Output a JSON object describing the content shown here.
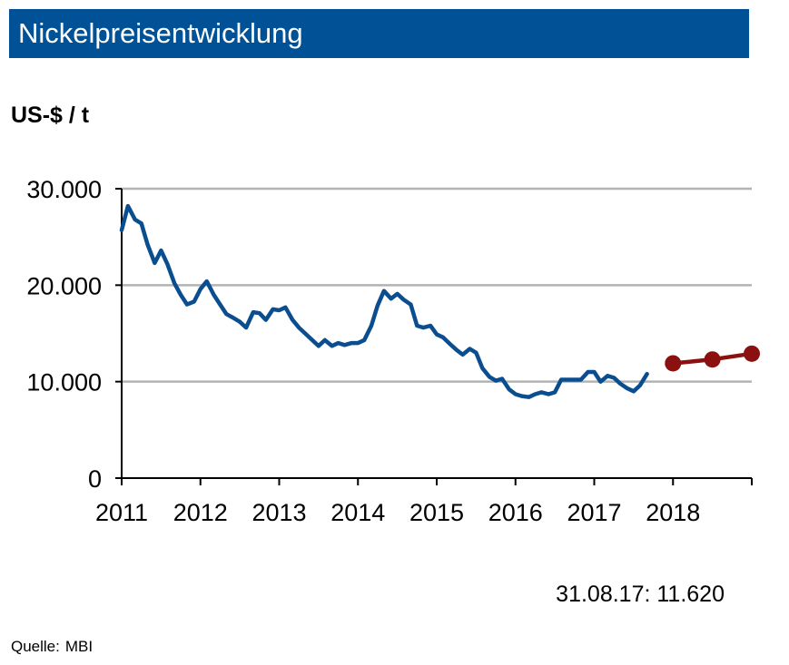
{
  "title": "Nickelpreisentwicklung",
  "unit_label": "US-$ / t",
  "note": "31.08.17: 11.620",
  "source": {
    "label": "Quelle:",
    "value": "MBI"
  },
  "colors": {
    "title_bg": "#005196",
    "history": "#0B4E8F",
    "forecast": "#8B1010",
    "grid": "#b3b3b3"
  },
  "chart_data": {
    "type": "line",
    "title": "Nickelpreisentwicklung",
    "ylabel": "US-$ / t",
    "xlabel": "",
    "ylim": [
      0,
      30000
    ],
    "xlim": [
      2011,
      2019
    ],
    "yticks": [
      0,
      10000,
      20000,
      30000
    ],
    "ytick_labels": [
      "0",
      "10.000",
      "20.000",
      "30.000"
    ],
    "xticks": [
      2011,
      2012,
      2013,
      2014,
      2015,
      2016,
      2017,
      2018
    ],
    "xtick_labels": [
      "2011",
      "2012",
      "2013",
      "2014",
      "2015",
      "2016",
      "2017",
      "2018"
    ],
    "grid": true,
    "series": [
      {
        "kind": "history",
        "x": [
          2011.0,
          2011.08,
          2011.17,
          2011.25,
          2011.33,
          2011.42,
          2011.5,
          2011.58,
          2011.67,
          2011.75,
          2011.83,
          2011.92,
          2012.0,
          2012.08,
          2012.17,
          2012.25,
          2012.33,
          2012.42,
          2012.5,
          2012.58,
          2012.67,
          2012.75,
          2012.83,
          2012.92,
          2013.0,
          2013.08,
          2013.17,
          2013.25,
          2013.33,
          2013.42,
          2013.5,
          2013.58,
          2013.67,
          2013.75,
          2013.83,
          2013.92,
          2014.0,
          2014.08,
          2014.17,
          2014.25,
          2014.33,
          2014.42,
          2014.5,
          2014.58,
          2014.67,
          2014.75,
          2014.83,
          2014.92,
          2015.0,
          2015.08,
          2015.17,
          2015.25,
          2015.33,
          2015.42,
          2015.5,
          2015.58,
          2015.67,
          2015.75,
          2015.83,
          2015.92,
          2016.0,
          2016.08,
          2016.17,
          2016.25,
          2016.33,
          2016.42,
          2016.5,
          2016.58,
          2016.67,
          2016.75,
          2016.83,
          2016.92,
          2017.0,
          2017.08,
          2017.17,
          2017.25,
          2017.33,
          2017.42,
          2017.5,
          2017.58,
          2017.67
        ],
        "y": [
          25700,
          28200,
          26800,
          26400,
          24200,
          22300,
          23600,
          22200,
          20200,
          19000,
          18000,
          18300,
          19600,
          20400,
          19000,
          18000,
          17000,
          16600,
          16200,
          15600,
          17200,
          17100,
          16400,
          17500,
          17400,
          17700,
          16400,
          15600,
          15000,
          14300,
          13700,
          14300,
          13700,
          14000,
          13800,
          14000,
          14000,
          14300,
          15800,
          17900,
          19400,
          18600,
          19100,
          18500,
          18000,
          15800,
          15600,
          15800,
          14900,
          14600,
          13900,
          13300,
          12800,
          13400,
          13000,
          11400,
          10500,
          10100,
          10300,
          9200,
          8700,
          8500,
          8400,
          8700,
          8900,
          8700,
          8900,
          10200,
          10200,
          10200,
          10200,
          11000,
          11000,
          10000,
          10600,
          10400,
          9800,
          9300,
          9000,
          9600,
          10800
        ]
      },
      {
        "kind": "forecast",
        "x": [
          2018.0,
          2018.5,
          2019.0
        ],
        "y": [
          11900,
          12300,
          12900
        ]
      }
    ]
  }
}
